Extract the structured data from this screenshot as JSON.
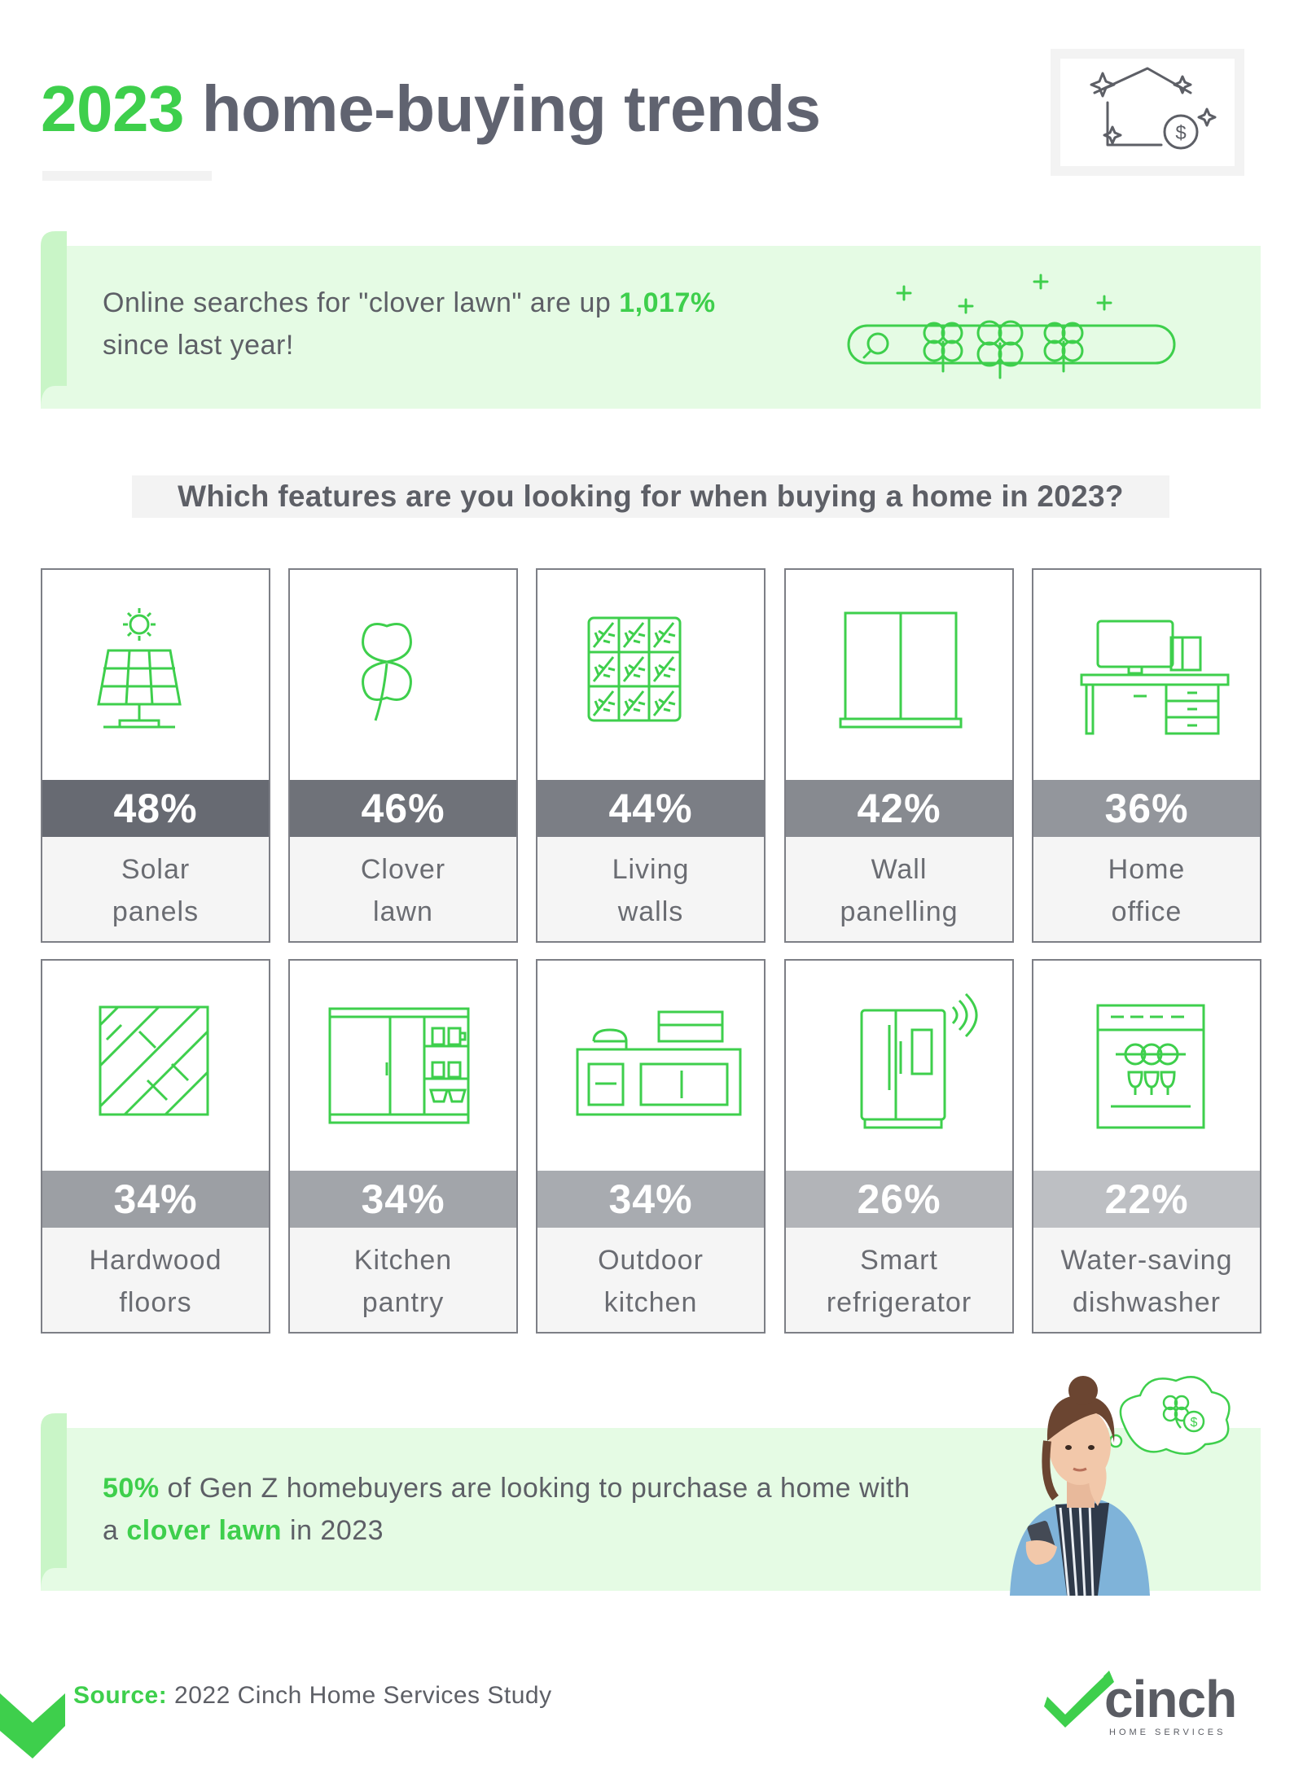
{
  "header": {
    "title_year": "2023",
    "title_rest": " home-buying trends",
    "icon": "house-dollar-icon"
  },
  "banner_top": {
    "text_before": "Online searches for \"clover lawn\" are up ",
    "highlight": "1,017%",
    "text_after": "since last year!",
    "icon": "clover-search-bar-icon"
  },
  "question": "Which features are you looking for when buying a home in 2023?",
  "features": [
    {
      "pct": "48%",
      "line1": "Solar",
      "line2": "panels",
      "icon": "solar-panel-icon",
      "color": "#676a72"
    },
    {
      "pct": "46%",
      "line1": "Clover",
      "line2": "lawn",
      "icon": "clover-icon",
      "color": "#6f7279"
    },
    {
      "pct": "44%",
      "line1": "Living",
      "line2": "walls",
      "icon": "living-wall-icon",
      "color": "#7b7e85"
    },
    {
      "pct": "42%",
      "line1": "Wall",
      "line2": "panelling",
      "icon": "wall-panel-icon",
      "color": "#878a90"
    },
    {
      "pct": "36%",
      "line1": "Home",
      "line2": "office",
      "icon": "desk-icon",
      "color": "#93969c"
    },
    {
      "pct": "34%",
      "line1": "Hardwood",
      "line2": "floors",
      "icon": "hardwood-floor-icon",
      "color": "#9c9fa4"
    },
    {
      "pct": "34%",
      "line1": "Kitchen",
      "line2": "pantry",
      "icon": "pantry-icon",
      "color": "#a2a5aa"
    },
    {
      "pct": "34%",
      "line1": "Outdoor",
      "line2": "kitchen",
      "icon": "outdoor-kitchen-icon",
      "color": "#a8abb0"
    },
    {
      "pct": "26%",
      "line1": "Smart",
      "line2": "refrigerator",
      "icon": "smart-fridge-icon",
      "color": "#b2b4b8"
    },
    {
      "pct": "22%",
      "line1": "Water-saving",
      "line2": "dishwasher",
      "icon": "dishwasher-icon",
      "color": "#bdbfc3"
    }
  ],
  "banner_bottom": {
    "highlight1": "50%",
    "text1": " of Gen Z homebuyers are looking to purchase a home with",
    "text2_before": "a ",
    "highlight2": "clover lawn",
    "text2_after": " in 2023",
    "image": "woman-thinking-illustration"
  },
  "footer": {
    "source_label": "Source:",
    "source_text": " 2022 Cinch Home Services Study",
    "logo_word": "cinch",
    "logo_sub": "HOME SERVICES"
  },
  "colors": {
    "accent": "#3ecf4c",
    "banner_bg": "#e5fbe4",
    "text": "#5d5f66"
  }
}
